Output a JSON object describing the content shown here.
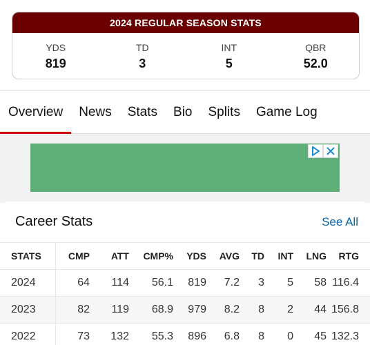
{
  "season": {
    "title": "2024 REGULAR SEASON STATS",
    "stats": [
      {
        "label": "YDS",
        "value": "819"
      },
      {
        "label": "TD",
        "value": "3"
      },
      {
        "label": "INT",
        "value": "5"
      },
      {
        "label": "QBR",
        "value": "52.0"
      }
    ]
  },
  "tabs": [
    "Overview",
    "News",
    "Stats",
    "Bio",
    "Splits",
    "Game Log"
  ],
  "active_tab": "Overview",
  "ad": {
    "info_icon": "adchoices-icon",
    "close_icon": "close-icon"
  },
  "career": {
    "title": "Career Stats",
    "see_all": "See All",
    "columns": [
      "STATS",
      "CMP",
      "ATT",
      "CMP%",
      "YDS",
      "AVG",
      "TD",
      "INT",
      "LNG",
      "RTG"
    ],
    "rows": [
      [
        "2024",
        "64",
        "114",
        "56.1",
        "819",
        "7.2",
        "3",
        "5",
        "58",
        "116.4"
      ],
      [
        "2023",
        "82",
        "119",
        "68.9",
        "979",
        "8.2",
        "8",
        "2",
        "44",
        "156.8"
      ],
      [
        "2022",
        "73",
        "132",
        "55.3",
        "896",
        "6.8",
        "8",
        "0",
        "45",
        "132.3"
      ]
    ]
  },
  "colors": {
    "header_bg": "#6b0000",
    "active_tab_underline": "#cc0000",
    "link": "#0a66a8",
    "ad_bg": "#5eae78"
  }
}
